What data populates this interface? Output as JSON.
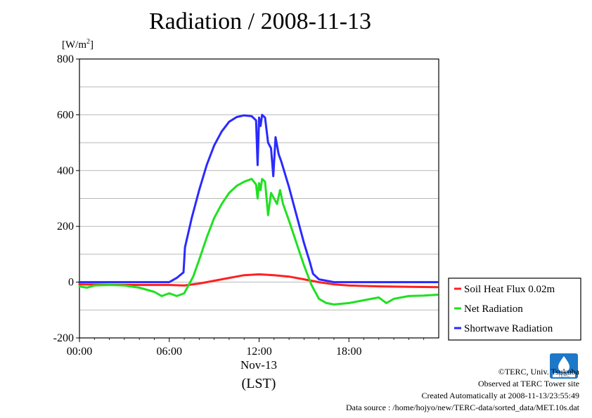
{
  "title": "Radiation / 2008-11-13",
  "chart_data": {
    "type": "line",
    "title": "Radiation / 2008-11-13",
    "ylabel": "[W/m2]",
    "ylabel_base": "[W/m",
    "ylabel_sup": "2",
    "ylabel_end": "]",
    "xlabel_date": "Nov-13",
    "xlabel_unit": "(LST)",
    "ylim": [
      -200,
      800
    ],
    "xlim": [
      0,
      24
    ],
    "y_ticks": [
      -200,
      0,
      200,
      400,
      600,
      800
    ],
    "y_tick_labels": [
      "-200",
      "0",
      "200",
      "400",
      "600",
      "800"
    ],
    "x_ticks": [
      0,
      6,
      12,
      18
    ],
    "x_tick_labels": [
      "00:00",
      "06:00",
      "12:00",
      "18:00"
    ],
    "grid": true,
    "legend_position": "right",
    "series": [
      {
        "name": "Soil Heat Flux 0.02m",
        "color": "#ff2020",
        "x": [
          0,
          2,
          4,
          6,
          7,
          8,
          9,
          10,
          11,
          12,
          13,
          14,
          15,
          16,
          17,
          18,
          20,
          22,
          23.9
        ],
        "y": [
          -8,
          -9,
          -10,
          -10,
          -12,
          -5,
          5,
          15,
          25,
          28,
          25,
          20,
          10,
          0,
          -8,
          -12,
          -15,
          -17,
          -18
        ]
      },
      {
        "name": "Net Radiation",
        "color": "#20e020",
        "x": [
          0,
          0.5,
          1,
          2,
          3,
          4,
          5,
          5.5,
          6,
          6.5,
          7,
          7.3,
          7.6,
          8,
          8.5,
          9,
          9.5,
          10,
          10.5,
          11,
          11.5,
          11.8,
          11.9,
          12,
          12.1,
          12.2,
          12.4,
          12.6,
          12.8,
          13,
          13.2,
          13.4,
          13.6,
          14,
          14.5,
          15,
          15.5,
          16,
          16.5,
          17,
          18,
          19,
          20,
          20.5,
          21,
          22,
          23,
          23.9
        ],
        "y": [
          -15,
          -20,
          -12,
          -10,
          -12,
          -20,
          -35,
          -50,
          -40,
          -50,
          -40,
          -10,
          20,
          80,
          160,
          230,
          280,
          320,
          345,
          360,
          370,
          350,
          300,
          355,
          330,
          370,
          360,
          240,
          320,
          300,
          280,
          330,
          280,
          220,
          140,
          60,
          -10,
          -60,
          -75,
          -80,
          -75,
          -65,
          -55,
          -75,
          -60,
          -50,
          -48,
          -45
        ]
      },
      {
        "name": "Shortwave Radiation",
        "color": "#2a2aff",
        "x": [
          0,
          2,
          4,
          5.5,
          6,
          6.5,
          6.95,
          7.05,
          7.5,
          8,
          8.5,
          9,
          9.5,
          10,
          10.5,
          11,
          11.5,
          11.8,
          11.9,
          12,
          12.1,
          12.2,
          12.4,
          12.6,
          12.8,
          12.95,
          13.1,
          13.3,
          13.5,
          14,
          14.5,
          15,
          15.4,
          15.6,
          16,
          17,
          18,
          20,
          22,
          23.9
        ],
        "y": [
          0,
          0,
          0,
          0,
          0,
          15,
          35,
          125,
          230,
          330,
          420,
          490,
          540,
          575,
          592,
          598,
          595,
          580,
          420,
          590,
          560,
          600,
          590,
          500,
          480,
          380,
          520,
          460,
          430,
          340,
          240,
          140,
          70,
          30,
          10,
          0,
          0,
          0,
          0,
          0
        ]
      }
    ]
  },
  "footer": {
    "copyright": "©TERC, Univ. Tsukuba",
    "observed": "Observed at TERC Tower site",
    "created": "Created Automatically at 2008-11-13/23:55:49",
    "source": "Data source : /home/hojyo/new/TERC-data/sorted_data/MET.10s.dat"
  },
  "logo_text": "TERC"
}
